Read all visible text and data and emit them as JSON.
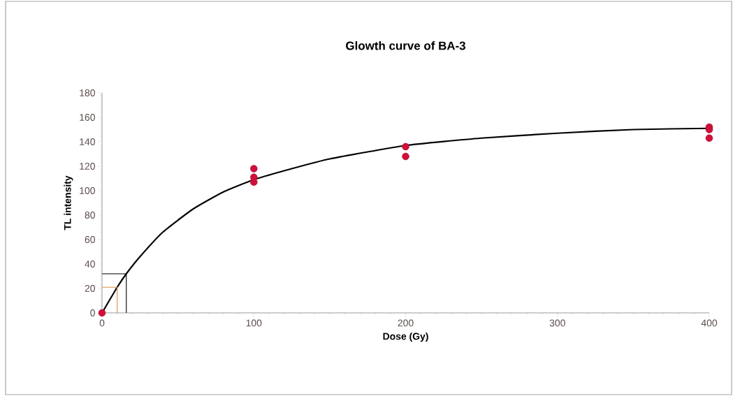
{
  "chart_data": {
    "type": "scatter",
    "title": "Glowth curve of BA-3",
    "xlabel": "Dose (Gy)",
    "ylabel": "TL intensity",
    "xlim": [
      0,
      400
    ],
    "xticks": [
      0,
      100,
      200,
      300,
      400
    ],
    "ylim": [
      0,
      180
    ],
    "yticks": [
      0,
      20,
      40,
      60,
      80,
      100,
      120,
      140,
      160,
      180
    ],
    "series": [
      {
        "color": "#d0103a",
        "marker": "circle",
        "x": [
          0,
          100,
          100,
          100,
          200,
          200,
          400,
          400,
          400
        ],
        "values": [
          0,
          118,
          111,
          107,
          136,
          128,
          152,
          150,
          143
        ]
      },
      {
        "type": "line",
        "color": "#000000",
        "marker": "none",
        "line_style": "solid",
        "x": [
          0,
          10,
          16,
          25,
          40,
          60,
          80,
          100,
          125,
          150,
          200,
          250,
          300,
          350,
          400
        ],
        "values": [
          0,
          21,
          32,
          46,
          66,
          85,
          99,
          109,
          118,
          126,
          137,
          143,
          147,
          150,
          151
        ]
      },
      {
        "type": "line",
        "color": "#000000",
        "marker": "none",
        "line_style": "solid",
        "x": [
          0,
          16,
          16
        ],
        "values": [
          32,
          32,
          0
        ]
      },
      {
        "type": "line",
        "color": "#d9904a",
        "marker": "none",
        "line_style": "solid",
        "x": [
          0,
          10,
          10
        ],
        "values": [
          21,
          21,
          0
        ]
      }
    ]
  }
}
